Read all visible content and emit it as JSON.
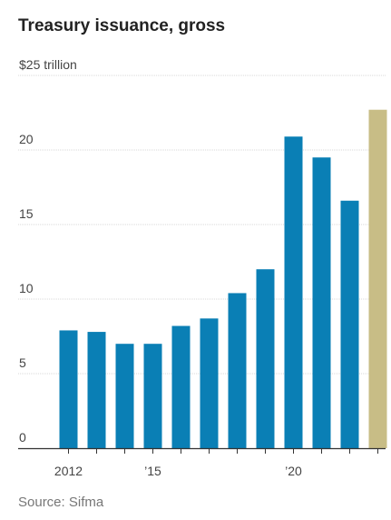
{
  "title": "Treasury issuance, gross",
  "source": "Source: Sifma",
  "chart_data": {
    "type": "bar",
    "title": "Treasury issuance, gross",
    "ylabel": "",
    "xlabel": "",
    "ylim": [
      0,
      25
    ],
    "yticks": [
      0,
      5,
      10,
      15,
      20,
      25
    ],
    "ytick_labels": [
      "0",
      "5",
      "10",
      "15",
      "20",
      "$25 trillion"
    ],
    "categories": [
      "2012",
      "2013",
      "2014",
      "2015",
      "2016",
      "2017",
      "2018",
      "2019",
      "2020",
      "2021",
      "2022",
      "2023"
    ],
    "xtick_labels": [
      {
        "category": "2012",
        "label": "2012"
      },
      {
        "category": "2015",
        "label": "’15"
      },
      {
        "category": "2020",
        "label": "’20"
      }
    ],
    "values": [
      7.9,
      7.8,
      7.0,
      7.0,
      8.2,
      8.7,
      10.4,
      12.0,
      20.9,
      19.5,
      16.6,
      22.7
    ],
    "colors": [
      "#0a7fb5",
      "#0a7fb5",
      "#0a7fb5",
      "#0a7fb5",
      "#0a7fb5",
      "#0a7fb5",
      "#0a7fb5",
      "#0a7fb5",
      "#0a7fb5",
      "#0a7fb5",
      "#0a7fb5",
      "#c8bd86"
    ],
    "grid": true,
    "legend": "none"
  }
}
